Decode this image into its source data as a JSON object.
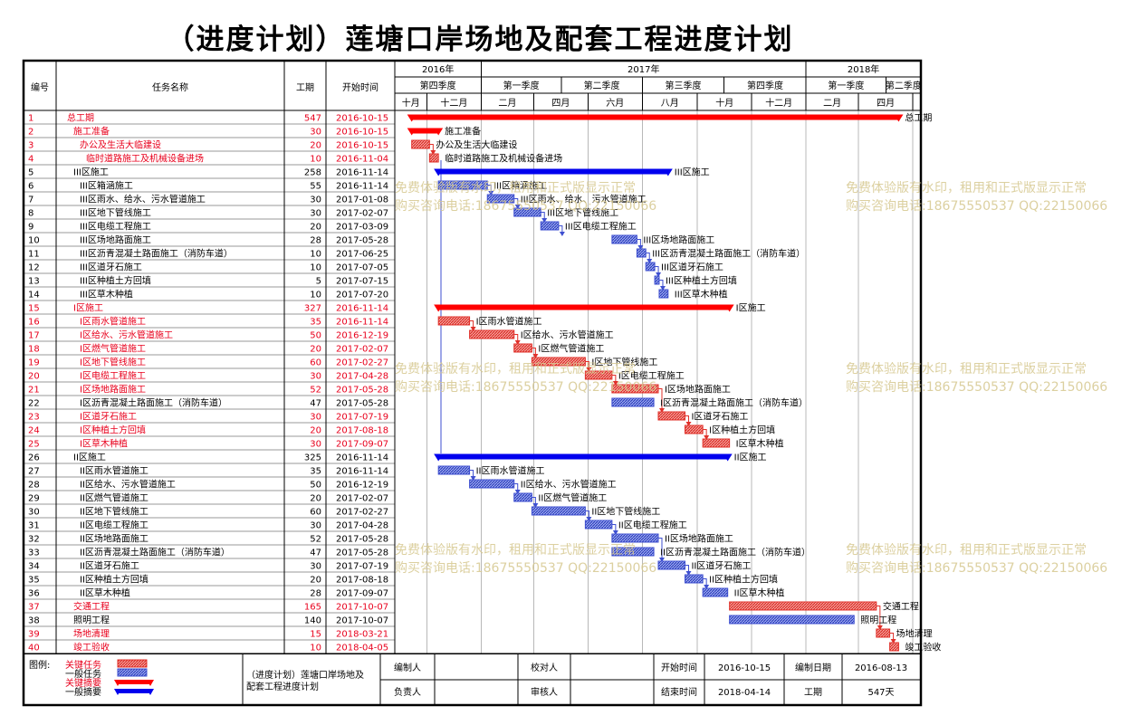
{
  "title": "（进度计划）莲塘口岸场地及配套工程进度计划",
  "headers": {
    "id": "编号",
    "name": "任务名称",
    "duration": "工期",
    "start": "开始时间"
  },
  "timeline": {
    "years": [
      {
        "label": "2016年",
        "from": "2016-09-26",
        "to": "2017-01-01"
      },
      {
        "label": "2017年",
        "from": "2017-01-01",
        "to": "2018-01-01"
      },
      {
        "label": "2018年",
        "from": "2018-01-01",
        "to": "2018-05-10"
      }
    ],
    "quarters": [
      {
        "label": "第四季度",
        "from": "2016-09-26",
        "to": "2017-01-01"
      },
      {
        "label": "第一季度",
        "from": "2017-01-01",
        "to": "2017-04-01"
      },
      {
        "label": "第二季度",
        "from": "2017-04-01",
        "to": "2017-07-01"
      },
      {
        "label": "第三季度",
        "from": "2017-07-01",
        "to": "2017-10-01"
      },
      {
        "label": "第四季度",
        "from": "2017-10-01",
        "to": "2018-01-01"
      },
      {
        "label": "第一季度",
        "from": "2018-01-01",
        "to": "2018-04-01"
      },
      {
        "label": "第二季度",
        "from": "2018-04-01",
        "to": "2018-05-10"
      }
    ],
    "months": [
      {
        "label": "十月",
        "from": "2016-09-26",
        "to": "2016-11-01"
      },
      {
        "label": "十二月",
        "from": "2016-11-01",
        "to": "2017-01-01"
      },
      {
        "label": "二月",
        "from": "2017-01-01",
        "to": "2017-03-01"
      },
      {
        "label": "四月",
        "from": "2017-03-01",
        "to": "2017-05-01"
      },
      {
        "label": "六月",
        "from": "2017-05-01",
        "to": "2017-07-01"
      },
      {
        "label": "八月",
        "from": "2017-07-01",
        "to": "2017-09-01"
      },
      {
        "label": "十月",
        "from": "2017-09-01",
        "to": "2017-11-01"
      },
      {
        "label": "十二月",
        "from": "2017-11-01",
        "to": "2018-01-01"
      },
      {
        "label": "二月",
        "from": "2018-01-01",
        "to": "2018-03-01"
      },
      {
        "label": "四月",
        "from": "2018-03-01",
        "to": "2018-05-01"
      },
      {
        "label": "",
        "from": "2018-05-01",
        "to": "2018-05-10"
      }
    ]
  },
  "chart_data": {
    "type": "gantt",
    "time_range": [
      "2016-09-26",
      "2018-05-10"
    ],
    "tasks": [
      {
        "id": "1",
        "name": "总工期",
        "indent": 0,
        "duration": 547,
        "start": "2016-10-15",
        "kind": "summary",
        "critical": true,
        "label": "总工期"
      },
      {
        "id": "2",
        "name": "施工准备",
        "indent": 1,
        "duration": 30,
        "start": "2016-10-15",
        "kind": "summary",
        "critical": true,
        "label": "施工准备"
      },
      {
        "id": "3",
        "name": "办公及生活大临建设",
        "indent": 2,
        "duration": 20,
        "start": "2016-10-15",
        "kind": "task",
        "critical": true,
        "label": "办公及生活大临建设"
      },
      {
        "id": "4",
        "name": "临时道路施工及机械设备进场",
        "indent": 3,
        "duration": 10,
        "start": "2016-11-04",
        "kind": "task",
        "critical": true,
        "label": "临时道路施工及机械设备进场"
      },
      {
        "id": "5",
        "name": "III区施工",
        "indent": 1,
        "duration": 258,
        "start": "2016-11-14",
        "kind": "summary",
        "critical": false,
        "label": "III区施工"
      },
      {
        "id": "6",
        "name": "III区箱涵施工",
        "indent": 2,
        "duration": 55,
        "start": "2016-11-14",
        "kind": "task",
        "critical": false,
        "label": "III区箱涵施工"
      },
      {
        "id": "7",
        "name": "III区雨水、给水、污水管道施工",
        "indent": 2,
        "duration": 30,
        "start": "2017-01-08",
        "kind": "task",
        "critical": false,
        "label": "III区雨水、给水、污水管道施工"
      },
      {
        "id": "8",
        "name": "III区地下管线施工",
        "indent": 2,
        "duration": 30,
        "start": "2017-02-07",
        "kind": "task",
        "critical": false,
        "label": "III区地下管线施工"
      },
      {
        "id": "9",
        "name": "III区电缆工程施工",
        "indent": 2,
        "duration": 20,
        "start": "2017-03-09",
        "kind": "task",
        "critical": false,
        "label": "III区电缆工程施工"
      },
      {
        "id": "10",
        "name": "III区场地路面施工",
        "indent": 2,
        "duration": 28,
        "start": "2017-05-28",
        "kind": "task",
        "critical": false,
        "label": "III区场地路面施工"
      },
      {
        "id": "11",
        "name": "III区沥青混凝土路面施工（消防车道）",
        "indent": 2,
        "duration": 10,
        "start": "2017-06-25",
        "kind": "task",
        "critical": false,
        "label": "III区沥青混凝土路面施工（消防车道）"
      },
      {
        "id": "12",
        "name": "III区道牙石施工",
        "indent": 2,
        "duration": 10,
        "start": "2017-07-05",
        "kind": "task",
        "critical": false,
        "label": "III区道牙石施工"
      },
      {
        "id": "13",
        "name": "III区种植土方回填",
        "indent": 2,
        "duration": 5,
        "start": "2017-07-15",
        "kind": "task",
        "critical": false,
        "label": "III区种植土方回填"
      },
      {
        "id": "14",
        "name": "III区草木种植",
        "indent": 2,
        "duration": 10,
        "start": "2017-07-20",
        "kind": "task",
        "critical": false,
        "label": "III区草木种植"
      },
      {
        "id": "15",
        "name": "Ⅰ区施工",
        "indent": 1,
        "duration": 327,
        "start": "2016-11-14",
        "kind": "summary",
        "critical": true,
        "label": "Ⅰ区施工"
      },
      {
        "id": "16",
        "name": "Ⅰ区雨水管道施工",
        "indent": 2,
        "duration": 35,
        "start": "2016-11-14",
        "kind": "task",
        "critical": true,
        "label": "Ⅰ区雨水管道施工"
      },
      {
        "id": "17",
        "name": "Ⅰ区给水、污水管道施工",
        "indent": 2,
        "duration": 50,
        "start": "2016-12-19",
        "kind": "task",
        "critical": true,
        "label": "Ⅰ区给水、污水管道施工"
      },
      {
        "id": "18",
        "name": "Ⅰ区燃气管道施工",
        "indent": 2,
        "duration": 20,
        "start": "2017-02-07",
        "kind": "task",
        "critical": true,
        "label": "Ⅰ区燃气管道施工"
      },
      {
        "id": "19",
        "name": "Ⅰ区地下管线施工",
        "indent": 2,
        "duration": 60,
        "start": "2017-02-27",
        "kind": "task",
        "critical": true,
        "label": "Ⅰ区地下管线施工"
      },
      {
        "id": "20",
        "name": "Ⅰ区电缆工程施工",
        "indent": 2,
        "duration": 30,
        "start": "2017-04-28",
        "kind": "task",
        "critical": true,
        "label": "Ⅰ区电缆工程施工"
      },
      {
        "id": "21",
        "name": "Ⅰ区场地路面施工",
        "indent": 2,
        "duration": 52,
        "start": "2017-05-28",
        "kind": "task",
        "critical": true,
        "label": "Ⅰ区场地路面施工"
      },
      {
        "id": "22",
        "name": "Ⅰ区沥青混凝土路面施工（消防车道）",
        "indent": 2,
        "duration": 47,
        "start": "2017-05-28",
        "kind": "task",
        "critical": false,
        "label": "Ⅰ区沥青混凝土路面施工（消防车道）"
      },
      {
        "id": "23",
        "name": "Ⅰ区道牙石施工",
        "indent": 2,
        "duration": 30,
        "start": "2017-07-19",
        "kind": "task",
        "critical": true,
        "label": "Ⅰ区道牙石施工"
      },
      {
        "id": "24",
        "name": "Ⅰ区种植土方回填",
        "indent": 2,
        "duration": 20,
        "start": "2017-08-18",
        "kind": "task",
        "critical": true,
        "label": "Ⅰ区种植土方回填"
      },
      {
        "id": "25",
        "name": "Ⅰ区草木种植",
        "indent": 2,
        "duration": 30,
        "start": "2017-09-07",
        "kind": "task",
        "critical": true,
        "label": "Ⅰ区草木种植"
      },
      {
        "id": "26",
        "name": "II区施工",
        "indent": 1,
        "duration": 325,
        "start": "2016-11-14",
        "kind": "summary",
        "critical": false,
        "label": "II区施工"
      },
      {
        "id": "27",
        "name": "II区雨水管道施工",
        "indent": 2,
        "duration": 35,
        "start": "2016-11-14",
        "kind": "task",
        "critical": false,
        "label": "II区雨水管道施工"
      },
      {
        "id": "28",
        "name": "II区给水、污水管道施工",
        "indent": 2,
        "duration": 50,
        "start": "2016-12-19",
        "kind": "task",
        "critical": false,
        "label": "II区给水、污水管道施工"
      },
      {
        "id": "29",
        "name": "II区燃气管道施工",
        "indent": 2,
        "duration": 20,
        "start": "2017-02-07",
        "kind": "task",
        "critical": false,
        "label": "II区燃气管道施工"
      },
      {
        "id": "30",
        "name": "II区地下管线施工",
        "indent": 2,
        "duration": 60,
        "start": "2017-02-27",
        "kind": "task",
        "critical": false,
        "label": "II区地下管线施工"
      },
      {
        "id": "31",
        "name": "II区电缆工程施工",
        "indent": 2,
        "duration": 30,
        "start": "2017-04-28",
        "kind": "task",
        "critical": false,
        "label": "II区电缆工程施工"
      },
      {
        "id": "32",
        "name": "II区场地路面施工",
        "indent": 2,
        "duration": 52,
        "start": "2017-05-28",
        "kind": "task",
        "critical": false,
        "label": "II区场地路面施工"
      },
      {
        "id": "33",
        "name": "II区沥青混凝土路面施工（消防车道）",
        "indent": 2,
        "duration": 47,
        "start": "2017-05-28",
        "kind": "task",
        "critical": false,
        "label": "II区沥青混凝土路面施工（消防车道）"
      },
      {
        "id": "34",
        "name": "II区道牙石施工",
        "indent": 2,
        "duration": 30,
        "start": "2017-07-19",
        "kind": "task",
        "critical": false,
        "label": "II区道牙石施工"
      },
      {
        "id": "35",
        "name": "II区种植土方回填",
        "indent": 2,
        "duration": 20,
        "start": "2017-08-18",
        "kind": "task",
        "critical": false,
        "label": "II区种植土方回填"
      },
      {
        "id": "36",
        "name": "II区草木种植",
        "indent": 2,
        "duration": 28,
        "start": "2017-09-07",
        "kind": "task",
        "critical": false,
        "label": "II区草木种植"
      },
      {
        "id": "37",
        "name": "交通工程",
        "indent": 1,
        "duration": 165,
        "start": "2017-10-07",
        "kind": "task",
        "critical": true,
        "label": "交通工程"
      },
      {
        "id": "38",
        "name": "照明工程",
        "indent": 1,
        "duration": 140,
        "start": "2017-10-07",
        "kind": "task",
        "critical": false,
        "label": "照明工程"
      },
      {
        "id": "39",
        "name": "场地清理",
        "indent": 1,
        "duration": 15,
        "start": "2018-03-21",
        "kind": "task",
        "critical": true,
        "label": "场地清理"
      },
      {
        "id": "40",
        "name": "竣工验收",
        "indent": 1,
        "duration": 10,
        "start": "2018-04-05",
        "kind": "task",
        "critical": true,
        "label": "竣工验收"
      }
    ]
  },
  "footer": {
    "legend_title": "图例:",
    "legend_items": [
      "关键任务",
      "一般任务",
      "关键摘要",
      "一般摘要"
    ],
    "project_name": "（进度计划）莲塘口岸场地及配套工程进度计划",
    "editor_label": "编制人",
    "checker_label": "校对人",
    "owner_label": "负责人",
    "reviewer_label": "审核人",
    "start_label": "开始时间",
    "start_value": "2016-10-15",
    "date_label": "编制日期",
    "date_value": "2016-08-13",
    "end_label": "结束时间",
    "end_value": "2018-04-14",
    "duration_label": "工期",
    "duration_value": "547天"
  },
  "watermark": {
    "line1": "免费体验版有水印，租用和正式版显示正常",
    "line2": "购买咨询电话:18675550537 QQ:22150066"
  },
  "colors": {
    "critical": "#e0302a",
    "normal": "#3e4fd0",
    "critical_summary": "#ff0000",
    "normal_summary": "#0000ee",
    "critical_text": "#e8001c",
    "watermark": "#d6c890"
  }
}
